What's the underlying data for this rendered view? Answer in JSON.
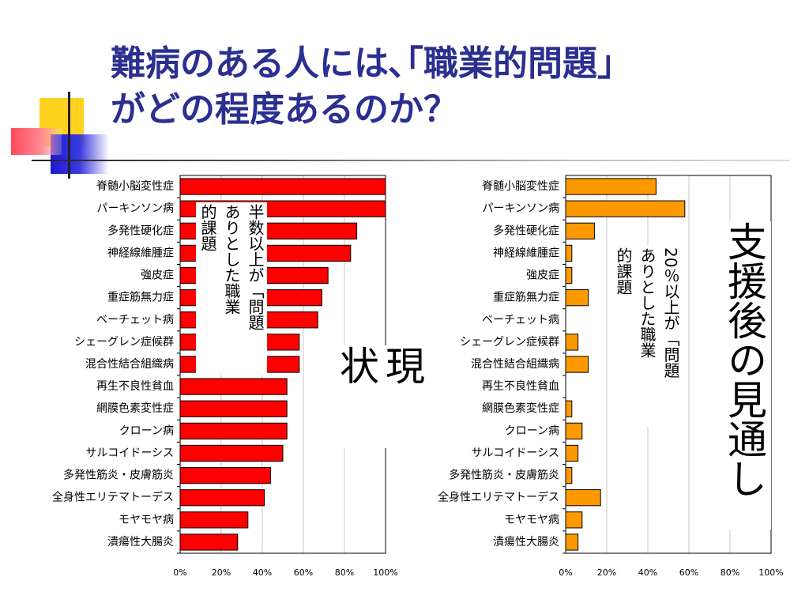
{
  "title": "難病のある人には､｢職業的問題｣\nがどの程度あるのか？",
  "colors": {
    "title": "#2b2f8f",
    "current_bar": "#ff0000",
    "outlook_bar": "#ff9900"
  },
  "annotations": {
    "left_note": "半数以上が「問題\nありとした職業\n的課題",
    "left_big": "現\n状",
    "right_note": "20％以上が「問題\nありとした職業\n的課題",
    "right_big": "支援後の見通し"
  },
  "chart_data": [
    {
      "type": "bar",
      "orientation": "horizontal",
      "categories": [
        "脊髄小脳変性症",
        "パーキンソン病",
        "多発性硬化症",
        "神経線維腫症",
        "強皮症",
        "重症筋無力症",
        "ベーチェット病",
        "シェーグレン症候群",
        "混合性結合組織病",
        "再生不良性貧血",
        "網膜色素変性症",
        "クローン病",
        "サルコイドーシス",
        "多発性筋炎・皮膚筋炎",
        "全身性エリテマトーデス",
        "モヤモヤ病",
        "潰瘍性大腸炎"
      ],
      "values": [
        100,
        100,
        86,
        83,
        72,
        69,
        67,
        58,
        58,
        52,
        52,
        52,
        50,
        44,
        41,
        33,
        28
      ],
      "xlim": [
        0,
        100
      ],
      "xticks": [
        "0%",
        "20%",
        "40%",
        "60%",
        "80%",
        "100%"
      ],
      "grid": true,
      "color": "#ff0000"
    },
    {
      "type": "bar",
      "orientation": "horizontal",
      "categories": [
        "脊髄小脳変性症",
        "パーキンソン病",
        "多発性硬化症",
        "神経線維腫症",
        "強皮症",
        "重症筋無力症",
        "ベーチェット病",
        "シェーグレン症候群",
        "混合性結合組織病",
        "再生不良性貧血",
        "網膜色素変性症",
        "クローン病",
        "サルコイドーシス",
        "多発性筋炎・皮膚筋炎",
        "全身性エリテマトーデス",
        "モヤモヤ病",
        "潰瘍性大腸炎"
      ],
      "values": [
        44,
        58,
        14,
        3,
        3,
        11,
        0,
        6,
        11,
        0,
        3,
        8,
        6,
        3,
        17,
        8,
        6
      ],
      "xlim": [
        0,
        100
      ],
      "xticks": [
        "0%",
        "20%",
        "40%",
        "60%",
        "80%",
        "100%"
      ],
      "grid": true,
      "color": "#ff9900"
    }
  ]
}
